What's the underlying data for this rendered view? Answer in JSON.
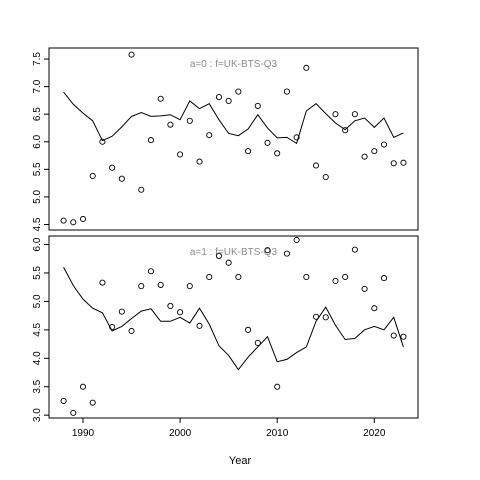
{
  "chart_data": {
    "type": "line",
    "xlabel": "Year",
    "x_ticks": [
      1990,
      2000,
      2010,
      2020
    ],
    "xlim": [
      1986.5,
      2024.5
    ],
    "panels": [
      {
        "label": "a=0  :  f=UK-BTS-Q3",
        "ylim": [
          4.4,
          7.7
        ],
        "y_ticks": [
          "4.5",
          "5.0",
          "5.5",
          "6.0",
          "6.5",
          "7.0",
          "7.5"
        ],
        "series": [
          {
            "type": "line",
            "x": [
              1988,
              1989,
              1990,
              1991,
              1992,
              1993,
              1994,
              1995,
              1996,
              1997,
              1998,
              1999,
              2000,
              2001,
              2002,
              2003,
              2004,
              2005,
              2006,
              2007,
              2008,
              2009,
              2010,
              2011,
              2012,
              2013,
              2014,
              2015,
              2016,
              2017,
              2018,
              2019,
              2020,
              2021,
              2022,
              2023
            ],
            "y": [
              6.9,
              6.68,
              6.52,
              6.38,
              6.02,
              6.1,
              6.27,
              6.46,
              6.53,
              6.46,
              6.47,
              6.49,
              6.4,
              6.74,
              6.6,
              6.69,
              6.4,
              6.15,
              6.11,
              6.23,
              6.49,
              6.25,
              6.07,
              6.08,
              5.97,
              6.56,
              6.69,
              6.51,
              6.34,
              6.22,
              6.38,
              6.43,
              6.26,
              6.43,
              6.08,
              6.16
            ]
          },
          {
            "type": "scatter",
            "x": [
              1988,
              1989,
              1990,
              1991,
              1992,
              1993,
              1994,
              1995,
              1996,
              1997,
              1998,
              1999,
              2000,
              2001,
              2002,
              2003,
              2004,
              2005,
              2006,
              2007,
              2008,
              2009,
              2010,
              2011,
              2012,
              2013,
              2014,
              2015,
              2016,
              2017,
              2018,
              2019,
              2020,
              2021,
              2022,
              2023
            ],
            "y": [
              4.57,
              4.54,
              4.6,
              5.38,
              6.0,
              5.53,
              5.33,
              7.58,
              5.13,
              6.03,
              6.78,
              6.31,
              5.77,
              6.38,
              5.64,
              6.12,
              6.81,
              6.74,
              6.91,
              5.83,
              6.65,
              5.98,
              5.79,
              6.91,
              6.08,
              7.34,
              5.57,
              5.36,
              6.5,
              6.21,
              6.5,
              5.73,
              5.83,
              5.95,
              5.61,
              5.62
            ]
          }
        ]
      },
      {
        "label": "a=1  :  f=UK-BTS-Q3",
        "ylim": [
          2.95,
          6.15
        ],
        "y_ticks": [
          "3.0",
          "3.5",
          "4.0",
          "4.5",
          "5.0",
          "5.5",
          "6.0"
        ],
        "series": [
          {
            "type": "line",
            "x": [
              1988,
              1989,
              1990,
              1991,
              1992,
              1993,
              1994,
              1995,
              1996,
              1997,
              1998,
              1999,
              2000,
              2001,
              2002,
              2003,
              2004,
              2005,
              2006,
              2007,
              2008,
              2009,
              2010,
              2011,
              2012,
              2013,
              2014,
              2015,
              2016,
              2017,
              2018,
              2019,
              2020,
              2021,
              2022,
              2023
            ],
            "y": [
              5.6,
              5.28,
              5.04,
              4.88,
              4.8,
              4.48,
              4.56,
              4.7,
              4.83,
              4.87,
              4.65,
              4.65,
              4.72,
              4.62,
              4.88,
              4.6,
              4.22,
              4.05,
              3.8,
              4.02,
              4.2,
              4.38,
              3.94,
              3.98,
              4.1,
              4.2,
              4.65,
              4.9,
              4.58,
              4.33,
              4.35,
              4.5,
              4.56,
              4.5,
              4.72,
              4.2
            ]
          },
          {
            "type": "scatter",
            "x": [
              1988,
              1989,
              1990,
              1991,
              1992,
              1993,
              1994,
              1995,
              1996,
              1997,
              1998,
              1999,
              2000,
              2001,
              2002,
              2003,
              2004,
              2005,
              2006,
              2007,
              2008,
              2009,
              2010,
              2011,
              2012,
              2013,
              2014,
              2015,
              2016,
              2017,
              2018,
              2019,
              2020,
              2021,
              2022,
              2023
            ],
            "y": [
              3.25,
              3.04,
              3.5,
              3.22,
              5.33,
              4.55,
              4.82,
              4.48,
              5.27,
              5.53,
              5.29,
              4.92,
              4.81,
              5.27,
              4.57,
              5.43,
              5.8,
              5.68,
              5.43,
              4.5,
              4.27,
              5.9,
              3.5,
              5.84,
              6.08,
              5.43,
              4.73,
              4.72,
              5.36,
              5.43,
              5.91,
              5.22,
              4.88,
              5.41,
              4.4,
              4.38
            ]
          }
        ]
      }
    ]
  }
}
